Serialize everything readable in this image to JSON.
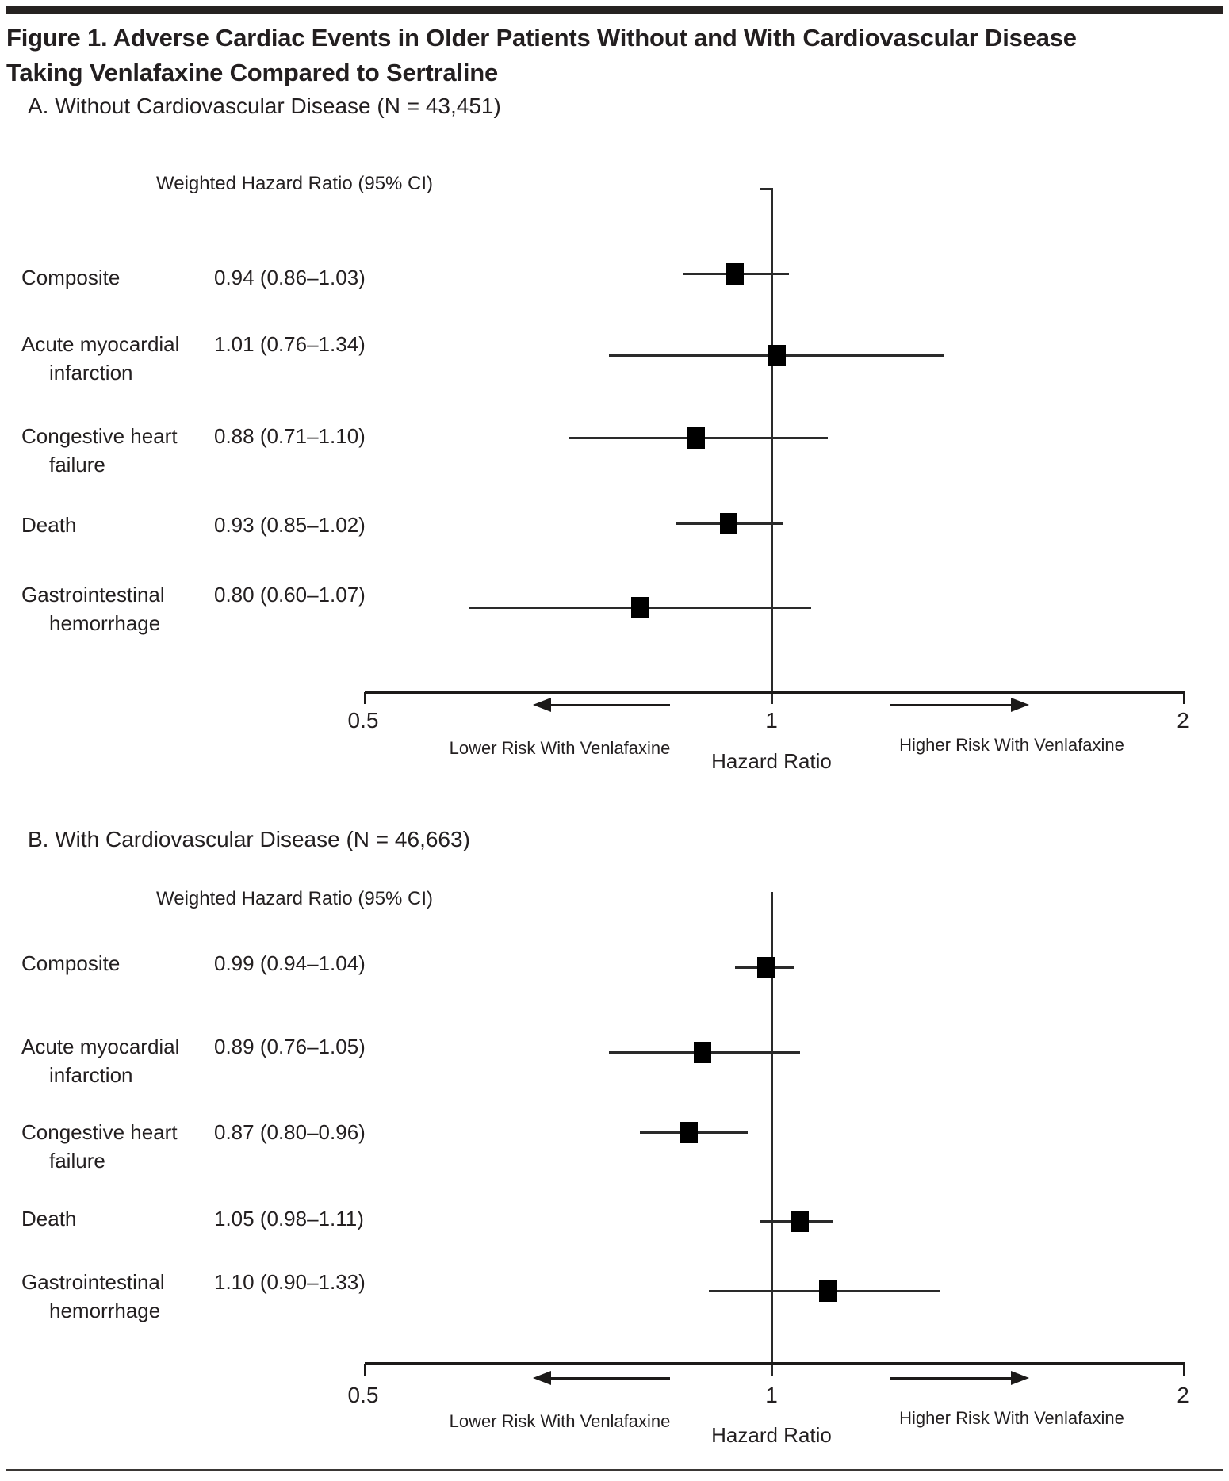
{
  "figure": {
    "title": "Figure 1. Adverse Cardiac Events in Older Patients Without and With Cardiovascular Disease Taking Venlafaxine Compared to Sertraline",
    "title_lines": [
      "Figure 1. Adverse Cardiac Events in Older Patients Without and With Cardiovascular Disease",
      "Taking Venlafaxine Compared to Sertraline"
    ]
  },
  "colors": {
    "ink": "#231f20",
    "marker": "#000000"
  },
  "chart_data": [
    {
      "type": "forest",
      "panel": "A",
      "title": "A. Without Cardiovascular Disease (N = 43,451)",
      "col_header": "Weighted Hazard Ratio (95% CI)",
      "xscale": "log",
      "xlim": [
        0.5,
        2
      ],
      "xticks": [
        "0.5",
        "1",
        "2"
      ],
      "xlabel": "Hazard Ratio",
      "arrow_left_label": "Lower Risk With Venlafaxine",
      "arrow_right_label": "Higher Risk With Venlafaxine",
      "reference_line": 1,
      "rows": [
        {
          "label_lines": [
            "Composite"
          ],
          "text": "0.94 (0.86–1.03)",
          "hr": 0.94,
          "lo": 0.86,
          "hi": 1.03
        },
        {
          "label_lines": [
            "Acute myocardial",
            "infarction"
          ],
          "text": "1.01 (0.76–1.34)",
          "hr": 1.01,
          "lo": 0.76,
          "hi": 1.34
        },
        {
          "label_lines": [
            "Congestive heart",
            "failure"
          ],
          "text": "0.88 (0.71–1.10)",
          "hr": 0.88,
          "lo": 0.71,
          "hi": 1.1
        },
        {
          "label_lines": [
            "Death"
          ],
          "text": "0.93 (0.85–1.02)",
          "hr": 0.93,
          "lo": 0.85,
          "hi": 1.02
        },
        {
          "label_lines": [
            "Gastrointestinal",
            "hemorrhage"
          ],
          "text": "0.80 (0.60–1.07)",
          "hr": 0.8,
          "lo": 0.6,
          "hi": 1.07
        }
      ]
    },
    {
      "type": "forest",
      "panel": "B",
      "title": "B. With Cardiovascular Disease (N = 46,663)",
      "col_header": "Weighted Hazard Ratio (95% CI)",
      "xscale": "log",
      "xlim": [
        0.5,
        2
      ],
      "xticks": [
        "0.5",
        "1",
        "2"
      ],
      "xlabel": "Hazard Ratio",
      "arrow_left_label": "Lower Risk With Venlafaxine",
      "arrow_right_label": "Higher Risk With Venlafaxine",
      "reference_line": 1,
      "rows": [
        {
          "label_lines": [
            "Composite"
          ],
          "text": "0.99 (0.94–1.04)",
          "hr": 0.99,
          "lo": 0.94,
          "hi": 1.04
        },
        {
          "label_lines": [
            "Acute myocardial",
            "infarction"
          ],
          "text": "0.89 (0.76–1.05)",
          "hr": 0.89,
          "lo": 0.76,
          "hi": 1.05
        },
        {
          "label_lines": [
            "Congestive heart",
            "failure"
          ],
          "text": "0.87 (0.80–0.96)",
          "hr": 0.87,
          "lo": 0.8,
          "hi": 0.96
        },
        {
          "label_lines": [
            "Death"
          ],
          "text": "1.05 (0.98–1.11)",
          "hr": 1.05,
          "lo": 0.98,
          "hi": 1.11
        },
        {
          "label_lines": [
            "Gastrointestinal",
            "hemorrhage"
          ],
          "text": "1.10 (0.90–1.33)",
          "hr": 1.1,
          "lo": 0.9,
          "hi": 1.33
        }
      ]
    }
  ]
}
